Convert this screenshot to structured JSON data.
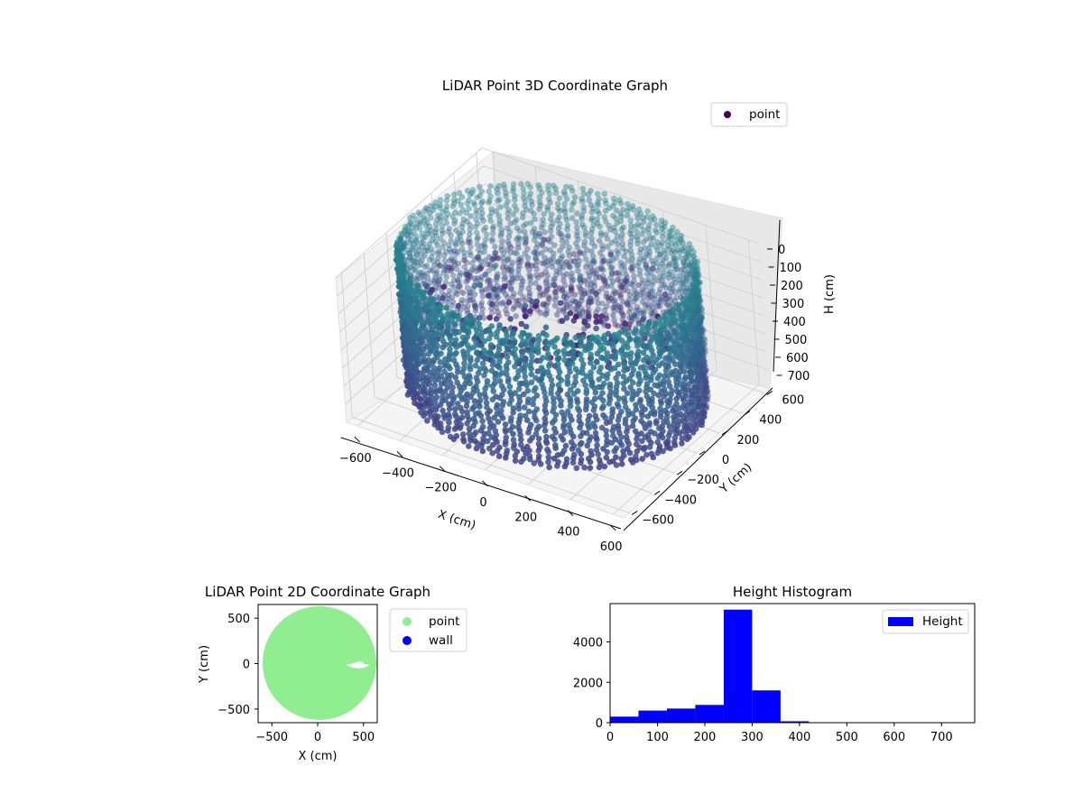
{
  "chart_data": [
    {
      "type": "scatter",
      "projection": "3d",
      "title": "LiDAR Point 3D Coordinate Graph",
      "xlabel": "X (cm)",
      "ylabel": "Y (cm)",
      "zlabel": "H (cm)",
      "xlim": [
        -650,
        650
      ],
      "ylim": [
        -650,
        650
      ],
      "zlim": [
        800,
        0
      ],
      "z_inverted": true,
      "xticks": [
        "−600",
        "−400",
        "−200",
        "0",
        "200",
        "400",
        "600"
      ],
      "yticks": [
        "−600",
        "−400",
        "−200",
        "0",
        "200",
        "400",
        "600"
      ],
      "zticks": [
        "0",
        "100",
        "200",
        "300",
        "400",
        "500",
        "600",
        "700"
      ],
      "grid": true,
      "legend": {
        "placement": "top-right",
        "entries": [
          {
            "label": "point",
            "color": "#440154"
          }
        ]
      },
      "series": [
        {
          "name": "point",
          "colormap": "viridis",
          "description_values": {
            "wall_ring_radius_cm": 620,
            "wall_height_range_cm": [
              0,
              700
            ],
            "floor_height_cm": 270
          }
        }
      ]
    },
    {
      "type": "scatter",
      "title": "LiDAR Point 2D Coordinate Graph",
      "xlabel": "X (cm)",
      "ylabel": "Y (cm)",
      "xlim": [
        -650,
        650
      ],
      "ylim": [
        -650,
        650
      ],
      "xticks": [
        "−500",
        "0",
        "500"
      ],
      "yticks": [
        "−500",
        "0",
        "500"
      ],
      "legend": {
        "placement": "outside-right",
        "entries": [
          {
            "label": "point",
            "color": "#90ee90"
          },
          {
            "label": "wall",
            "color": "#0000ff"
          }
        ]
      },
      "series": [
        {
          "name": "point",
          "color": "#90ee90",
          "region": "disk",
          "radius_cm": 630
        },
        {
          "name": "wall",
          "color": "#0000ff",
          "count": 0
        }
      ]
    },
    {
      "type": "bar",
      "subtype": "histogram",
      "title": "Height Histogram",
      "xlabel": "",
      "ylabel": "",
      "xlim": [
        0,
        770
      ],
      "ylim": [
        0,
        5900
      ],
      "xticks": [
        "0",
        "100",
        "200",
        "300",
        "400",
        "500",
        "600",
        "700"
      ],
      "yticks": [
        "0",
        "2000",
        "4000"
      ],
      "color": "#0000ff",
      "legend": {
        "placement": "top-right",
        "entries": [
          {
            "label": "Height",
            "color": "#0000ff"
          }
        ]
      },
      "bins": [
        {
          "x0": 0,
          "x1": 60,
          "value": 300
        },
        {
          "x0": 60,
          "x1": 120,
          "value": 600
        },
        {
          "x0": 120,
          "x1": 180,
          "value": 700
        },
        {
          "x0": 180,
          "x1": 240,
          "value": 880
        },
        {
          "x0": 240,
          "x1": 300,
          "value": 5600
        },
        {
          "x0": 300,
          "x1": 360,
          "value": 1600
        },
        {
          "x0": 360,
          "x1": 420,
          "value": 70
        },
        {
          "x0": 420,
          "x1": 480,
          "value": 8
        },
        {
          "x0": 480,
          "x1": 540,
          "value": 4
        },
        {
          "x0": 540,
          "x1": 600,
          "value": 3
        },
        {
          "x0": 600,
          "x1": 660,
          "value": 2
        },
        {
          "x0": 660,
          "x1": 720,
          "value": 2
        }
      ]
    }
  ]
}
